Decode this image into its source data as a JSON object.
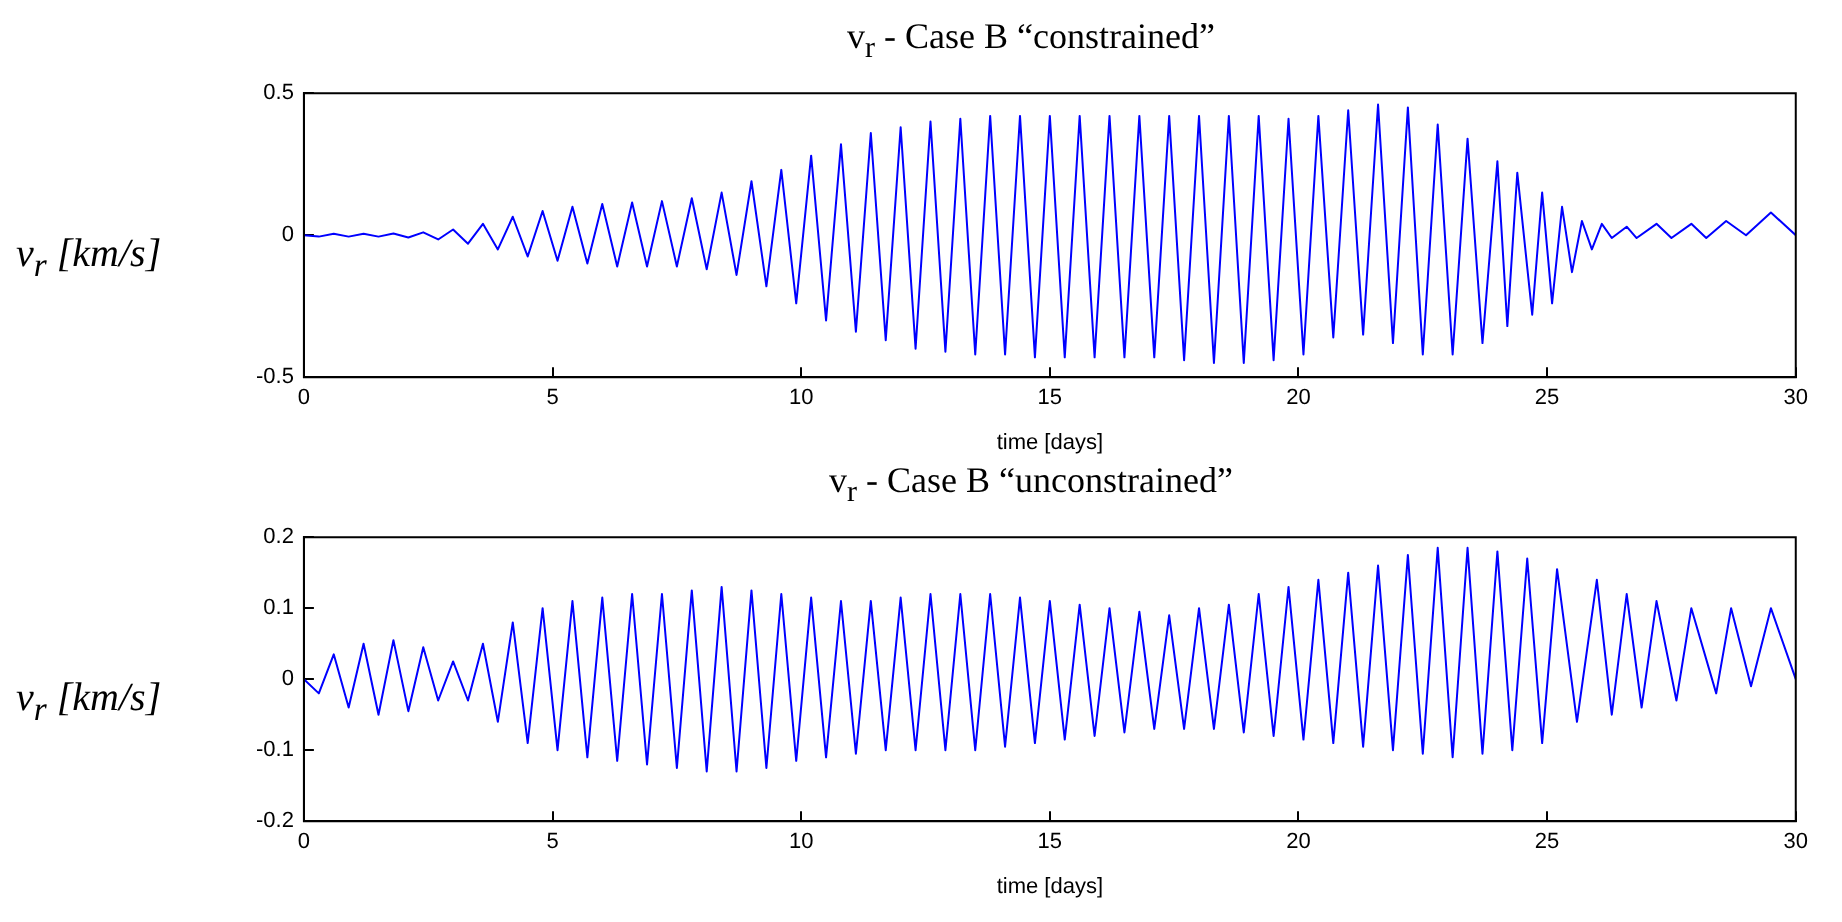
{
  "chart_data": [
    {
      "type": "line",
      "title": "v$_{r}$ - Case B  “constrained”",
      "xlabel": "time [days]",
      "ylabel": "v$_{r}$ [km/s]",
      "color": "#0000ff",
      "marker": "none",
      "grid": false,
      "xlim": [
        0,
        30
      ],
      "xticks": [
        0,
        5,
        10,
        15,
        20,
        25,
        30
      ],
      "ylim": [
        -0.5,
        0.5
      ],
      "yticks": [
        -0.5,
        0,
        0.5
      ],
      "x": [
        0,
        0.3,
        0.6,
        0.9,
        1.2,
        1.5,
        1.8,
        2.1,
        2.4,
        2.7,
        3.0,
        3.3,
        3.6,
        3.9,
        4.2,
        4.5,
        4.8,
        5.1,
        5.4,
        5.7,
        6.0,
        6.3,
        6.6,
        6.9,
        7.2,
        7.5,
        7.8,
        8.1,
        8.4,
        8.7,
        9.0,
        9.3,
        9.6,
        9.9,
        10.2,
        10.5,
        10.8,
        11.1,
        11.4,
        11.7,
        12.0,
        12.3,
        12.6,
        12.9,
        13.2,
        13.5,
        13.8,
        14.1,
        14.4,
        14.7,
        15.0,
        15.3,
        15.6,
        15.9,
        16.2,
        16.5,
        16.8,
        17.1,
        17.4,
        17.7,
        18.0,
        18.3,
        18.6,
        18.9,
        19.2,
        19.5,
        19.8,
        20.1,
        20.4,
        20.7,
        21.0,
        21.3,
        21.6,
        21.9,
        22.2,
        22.5,
        22.8,
        23.1,
        23.4,
        23.7,
        24.0,
        24.2,
        24.4,
        24.7,
        24.9,
        25.1,
        25.3,
        25.5,
        25.7,
        25.9,
        26.1,
        26.3,
        26.6,
        26.8,
        27.2,
        27.5,
        27.9,
        28.2,
        28.6,
        29.0,
        29.5,
        30
      ],
      "values": [
        0,
        -0.005,
        0.005,
        -0.005,
        0.005,
        -0.005,
        0.006,
        -0.008,
        0.01,
        -0.015,
        0.02,
        -0.03,
        0.04,
        -0.05,
        0.065,
        -0.075,
        0.085,
        -0.09,
        0.1,
        -0.1,
        0.11,
        -0.11,
        0.115,
        -0.11,
        0.12,
        -0.11,
        0.13,
        -0.12,
        0.15,
        -0.14,
        0.19,
        -0.18,
        0.23,
        -0.24,
        0.28,
        -0.3,
        0.32,
        -0.34,
        0.36,
        -0.37,
        0.38,
        -0.4,
        0.4,
        -0.41,
        0.41,
        -0.42,
        0.42,
        -0.42,
        0.42,
        -0.43,
        0.42,
        -0.43,
        0.42,
        -0.43,
        0.42,
        -0.43,
        0.42,
        -0.43,
        0.42,
        -0.44,
        0.42,
        -0.45,
        0.42,
        -0.45,
        0.42,
        -0.44,
        0.41,
        -0.42,
        0.42,
        -0.36,
        0.44,
        -0.35,
        0.46,
        -0.38,
        0.45,
        -0.42,
        0.39,
        -0.42,
        0.34,
        -0.38,
        0.26,
        -0.32,
        0.22,
        -0.28,
        0.15,
        -0.24,
        0.1,
        -0.13,
        0.05,
        -0.05,
        0.04,
        -0.01,
        0.03,
        -0.01,
        0.04,
        -0.01,
        0.04,
        -0.01,
        0.05,
        0.0,
        0.08,
        0.0
      ]
    },
    {
      "type": "line",
      "title": "v$_{r}$  -  Case B  “unconstrained”",
      "xlabel": "time [days]",
      "ylabel": "v$_{r}$ [km/s]",
      "color": "#0000ff",
      "marker": "none",
      "grid": false,
      "xlim": [
        0,
        30
      ],
      "xticks": [
        0,
        5,
        10,
        15,
        20,
        25,
        30
      ],
      "ylim": [
        -0.2,
        0.2
      ],
      "yticks": [
        -0.2,
        -0.1,
        0,
        0.1,
        0.2
      ],
      "x": [
        0,
        0.3,
        0.6,
        0.9,
        1.2,
        1.5,
        1.8,
        2.1,
        2.4,
        2.7,
        3.0,
        3.3,
        3.6,
        3.9,
        4.2,
        4.5,
        4.8,
        5.1,
        5.4,
        5.7,
        6.0,
        6.3,
        6.6,
        6.9,
        7.2,
        7.5,
        7.8,
        8.1,
        8.4,
        8.7,
        9.0,
        9.3,
        9.6,
        9.9,
        10.2,
        10.5,
        10.8,
        11.1,
        11.4,
        11.7,
        12.0,
        12.3,
        12.6,
        12.9,
        13.2,
        13.5,
        13.8,
        14.1,
        14.4,
        14.7,
        15.0,
        15.3,
        15.6,
        15.9,
        16.2,
        16.5,
        16.8,
        17.1,
        17.4,
        17.7,
        18.0,
        18.3,
        18.6,
        18.9,
        19.2,
        19.5,
        19.8,
        20.1,
        20.4,
        20.7,
        21.0,
        21.3,
        21.6,
        21.9,
        22.2,
        22.5,
        22.8,
        23.1,
        23.4,
        23.7,
        24.0,
        24.3,
        24.6,
        24.9,
        25.2,
        25.6,
        26.0,
        26.3,
        26.6,
        26.9,
        27.2,
        27.6,
        27.9,
        28.4,
        28.7,
        29.1,
        29.5,
        30
      ],
      "values": [
        0,
        -0.02,
        0.035,
        -0.04,
        0.05,
        -0.05,
        0.055,
        -0.045,
        0.045,
        -0.03,
        0.025,
        -0.03,
        0.05,
        -0.06,
        0.08,
        -0.09,
        0.1,
        -0.1,
        0.11,
        -0.11,
        0.115,
        -0.115,
        0.12,
        -0.12,
        0.12,
        -0.125,
        0.125,
        -0.13,
        0.13,
        -0.13,
        0.125,
        -0.125,
        0.12,
        -0.115,
        0.115,
        -0.11,
        0.11,
        -0.105,
        0.11,
        -0.1,
        0.115,
        -0.1,
        0.12,
        -0.1,
        0.12,
        -0.1,
        0.12,
        -0.095,
        0.115,
        -0.09,
        0.11,
        -0.085,
        0.105,
        -0.08,
        0.1,
        -0.075,
        0.095,
        -0.07,
        0.09,
        -0.07,
        0.1,
        -0.07,
        0.105,
        -0.075,
        0.12,
        -0.08,
        0.13,
        -0.085,
        0.14,
        -0.09,
        0.15,
        -0.095,
        0.16,
        -0.1,
        0.175,
        -0.105,
        0.185,
        -0.11,
        0.185,
        -0.105,
        0.18,
        -0.1,
        0.17,
        -0.09,
        0.155,
        -0.06,
        0.14,
        -0.05,
        0.12,
        -0.04,
        0.11,
        -0.03,
        0.1,
        -0.02,
        0.1,
        -0.01,
        0.1,
        0
      ]
    }
  ]
}
